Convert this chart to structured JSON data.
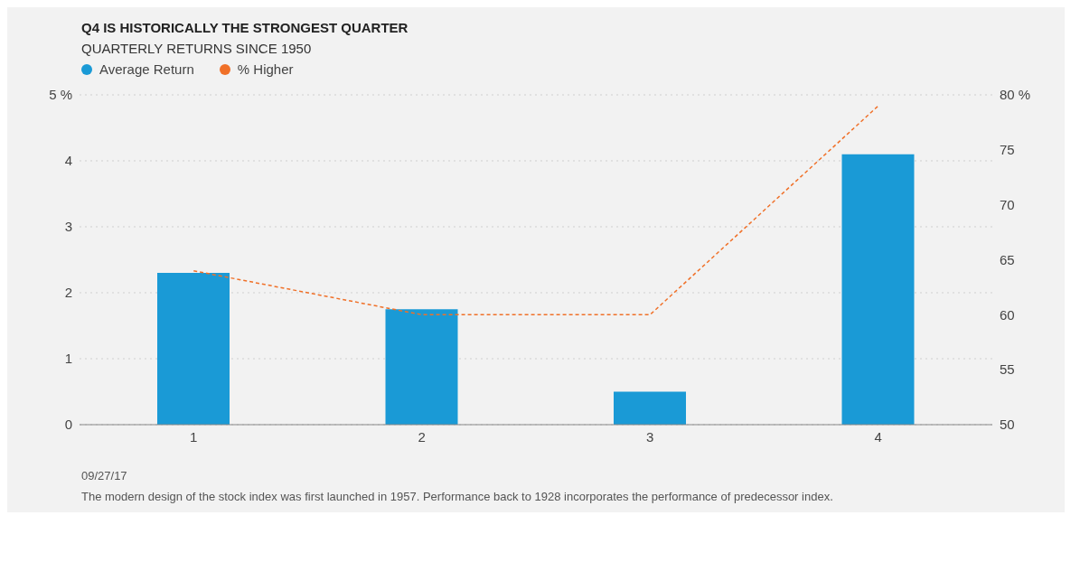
{
  "chart_data": {
    "type": "bar",
    "title": "Q4 IS HISTORICALLY THE STRONGEST QUARTER",
    "subtitle": "QUARTERLY RETURNS SINCE 1950",
    "categories": [
      "1",
      "2",
      "3",
      "4"
    ],
    "series": [
      {
        "name": "Average Return",
        "color": "#1a9ad6",
        "values": [
          2.3,
          1.75,
          0.5,
          4.1
        ]
      },
      {
        "name": "% Higher",
        "type": "line",
        "axis": "y2",
        "color": "#f07028",
        "line_style": "dashed",
        "values": [
          64,
          60,
          60,
          79
        ]
      }
    ],
    "ylim": [
      0,
      5
    ],
    "yticks": [
      0,
      1,
      2,
      3,
      4,
      {
        "value": 5,
        "label": "5 %"
      }
    ],
    "y2lim": [
      50,
      80
    ],
    "y2ticks": [
      50,
      55,
      60,
      65,
      70,
      75,
      {
        "value": 80,
        "label": "80 %"
      }
    ],
    "grid": "y",
    "legend": "top left",
    "marker": "none",
    "annotations": [
      "09/27/17",
      "The modern design of the stock index was first launched in 1957. Performance back to 1928 incorporates the performance of predecessor index."
    ]
  }
}
